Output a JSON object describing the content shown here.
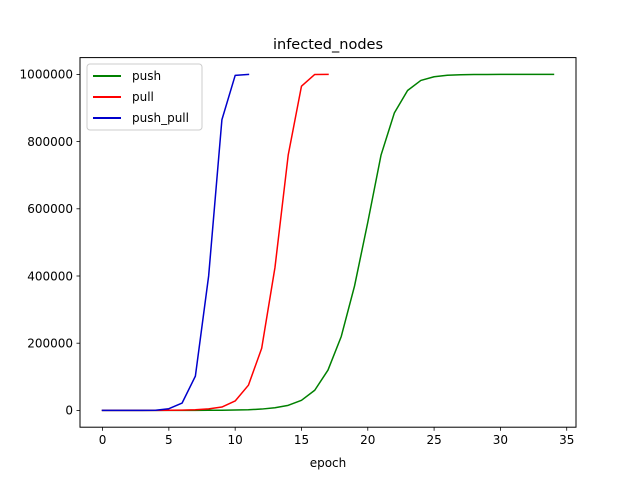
{
  "chart_data": {
    "type": "line",
    "title": "infected_nodes",
    "xlabel": "epoch",
    "ylabel": "",
    "xlim": [
      -1.7,
      35.7
    ],
    "ylim": [
      -50000,
      1050000
    ],
    "xticks": [
      0,
      5,
      10,
      15,
      20,
      25,
      30,
      35
    ],
    "yticks": [
      0,
      200000,
      400000,
      600000,
      800000,
      1000000
    ],
    "grid": false,
    "legend_position": "top-left",
    "series": [
      {
        "name": "push",
        "color": "#008000",
        "x": [
          0,
          1,
          2,
          3,
          4,
          5,
          6,
          7,
          8,
          9,
          10,
          11,
          12,
          13,
          14,
          15,
          16,
          17,
          18,
          19,
          20,
          21,
          22,
          23,
          24,
          25,
          26,
          27,
          28,
          29,
          30,
          31,
          32,
          33,
          34
        ],
        "values": [
          1,
          2,
          4,
          8,
          16,
          32,
          64,
          128,
          256,
          512,
          1000,
          2000,
          4000,
          8000,
          15000,
          30000,
          60000,
          120000,
          220000,
          370000,
          560000,
          760000,
          885000,
          952000,
          982000,
          993000,
          997500,
          999000,
          999600,
          999800,
          999900,
          999950,
          999980,
          999990,
          1000000
        ]
      },
      {
        "name": "pull",
        "color": "#ff0000",
        "x": [
          0,
          1,
          2,
          3,
          4,
          5,
          6,
          7,
          8,
          9,
          10,
          11,
          12,
          13,
          14,
          15,
          16,
          17
        ],
        "values": [
          1,
          2,
          4,
          16,
          100,
          300,
          800,
          2000,
          4500,
          10000,
          28000,
          75000,
          185000,
          425000,
          760000,
          965000,
          999800,
          1000000
        ]
      },
      {
        "name": "push_pull",
        "color": "#0000cc",
        "x": [
          0,
          1,
          2,
          3,
          4,
          5,
          6,
          7,
          8,
          9,
          10,
          11
        ],
        "values": [
          1,
          3,
          9,
          27,
          300,
          5000,
          22000,
          102000,
          400000,
          865000,
          997000,
          1000000
        ]
      }
    ]
  }
}
